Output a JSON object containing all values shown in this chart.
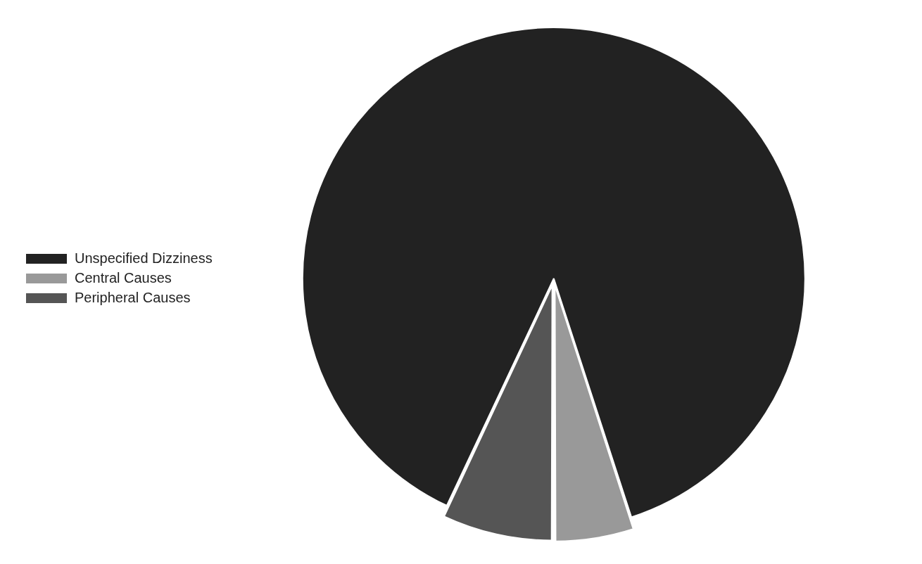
{
  "chart_data": {
    "type": "pie",
    "categories": [
      "Unspecified Dizziness",
      "Central Causes",
      "Peripheral Causes"
    ],
    "values": [
      88,
      5,
      7
    ],
    "colors": [
      "#222222",
      "#999999",
      "#555555"
    ],
    "legend": "left"
  }
}
